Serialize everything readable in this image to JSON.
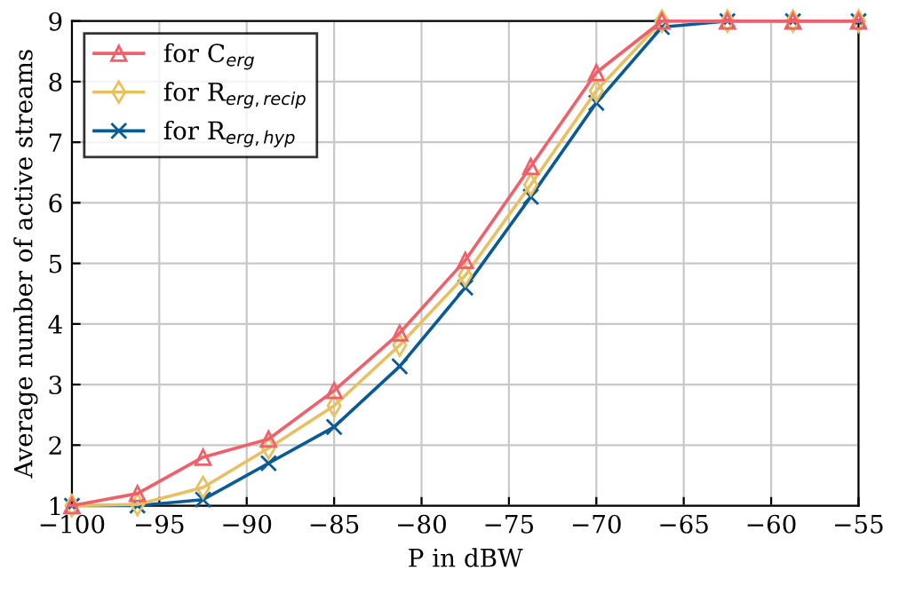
{
  "chart_data": {
    "type": "line",
    "xlabel": "P in dBW",
    "ylabel": "Average number of active streams",
    "x": [
      -100,
      -96.25,
      -92.5,
      -88.75,
      -85,
      -81.25,
      -77.5,
      -73.75,
      -70,
      -66.25,
      -62.5,
      -58.75,
      -55
    ],
    "series": [
      {
        "name": "for C$_{erg}$",
        "color": "#f0606a",
        "marker": "triangle",
        "values": [
          1.0,
          1.2,
          1.8,
          2.1,
          2.9,
          3.85,
          5.05,
          6.6,
          8.15,
          9,
          9,
          9,
          9
        ]
      },
      {
        "name": "for R$_{erg,recip}$",
        "color": "#e8c060",
        "marker": "diamond",
        "values": [
          1.0,
          1.02,
          1.3,
          1.95,
          2.65,
          3.65,
          4.8,
          6.3,
          7.85,
          9,
          9,
          9,
          9
        ]
      },
      {
        "name": "for R$_{erg,hyp}$",
        "color": "#0a5a96",
        "marker": "cross",
        "values": [
          1.0,
          1.0,
          1.1,
          1.7,
          2.3,
          3.3,
          4.6,
          6.1,
          7.65,
          8.9,
          9,
          9,
          9
        ]
      }
    ],
    "xlim": [
      -100,
      -55
    ],
    "xticks": [
      -100,
      -95,
      -90,
      -85,
      -80,
      -75,
      -70,
      -65,
      -60,
      -55
    ],
    "ylim": [
      1,
      9
    ],
    "yticks": [
      1,
      2,
      3,
      4,
      5,
      6,
      7,
      8,
      9
    ],
    "grid": true,
    "legend": "top left",
    "line_style": "solid"
  }
}
